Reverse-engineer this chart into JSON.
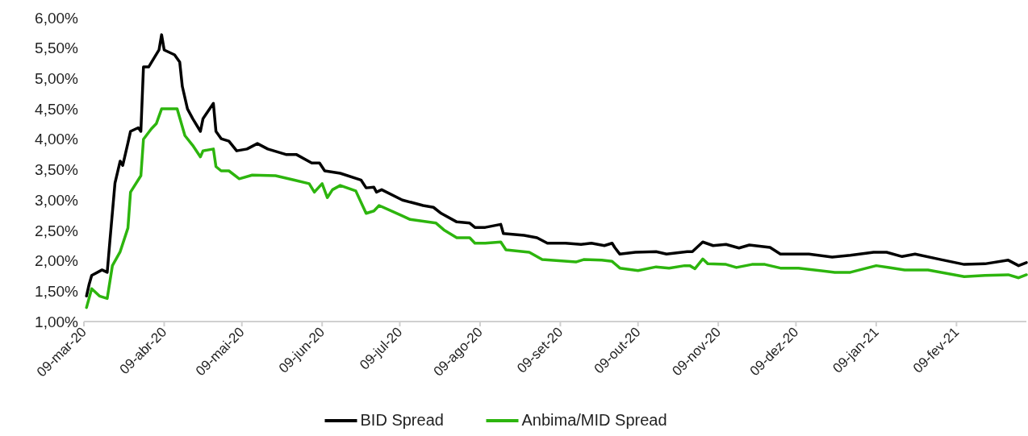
{
  "chart_data": {
    "type": "line",
    "legend": "bottom",
    "marker": "none",
    "line_style": "solid",
    "grid": false,
    "xlim": [
      "2020-03-09",
      "2021-03-08"
    ],
    "xticks": [
      {
        "value": "2020-03-09",
        "label": "09-mar-20"
      },
      {
        "value": "2020-04-09",
        "label": "09-abr-20"
      },
      {
        "value": "2020-05-09",
        "label": "09-mai-20"
      },
      {
        "value": "2020-06-09",
        "label": "09-jun-20"
      },
      {
        "value": "2020-07-09",
        "label": "09-jul-20"
      },
      {
        "value": "2020-08-09",
        "label": "09-ago-20"
      },
      {
        "value": "2020-09-09",
        "label": "09-set-20"
      },
      {
        "value": "2020-10-09",
        "label": "09-out-20"
      },
      {
        "value": "2020-11-09",
        "label": "09-nov-20"
      },
      {
        "value": "2020-12-09",
        "label": "09-dez-20"
      },
      {
        "value": "2021-01-09",
        "label": "09-jan-21"
      },
      {
        "value": "2021-02-09",
        "label": "09-fev-21"
      }
    ],
    "ylim": [
      1,
      6
    ],
    "yticks": [
      {
        "value": 1,
        "label": "1,00%"
      },
      {
        "value": 1.5,
        "label": "1,50%"
      },
      {
        "value": 2,
        "label": "2,00%"
      },
      {
        "value": 2.5,
        "label": "2,50%"
      },
      {
        "value": 3,
        "label": "3,00%"
      },
      {
        "value": 3.5,
        "label": "3,50%"
      },
      {
        "value": 4,
        "label": "4,00%"
      },
      {
        "value": 4.5,
        "label": "4,50%"
      },
      {
        "value": 5,
        "label": "5,00%"
      },
      {
        "value": 5.5,
        "label": "5,50%"
      },
      {
        "value": 6,
        "label": "6,00%"
      }
    ],
    "series": [
      {
        "name": "BID Spread",
        "color": "#000000",
        "x": [
          "2020-03-10",
          "2020-03-11",
          "2020-03-12",
          "2020-03-16",
          "2020-03-18",
          "2020-03-19",
          "2020-03-21",
          "2020-03-23",
          "2020-03-24",
          "2020-03-26",
          "2020-03-27",
          "2020-03-30",
          "2020-03-31",
          "2020-04-01",
          "2020-04-03",
          "2020-04-07",
          "2020-04-08",
          "2020-04-09",
          "2020-04-13",
          "2020-04-15",
          "2020-04-16",
          "2020-04-18",
          "2020-04-20",
          "2020-04-23",
          "2020-04-24",
          "2020-04-28",
          "2020-04-29",
          "2020-05-01",
          "2020-05-04",
          "2020-05-07",
          "2020-05-11",
          "2020-05-15",
          "2020-05-19",
          "2020-05-26",
          "2020-05-30",
          "2020-06-05",
          "2020-06-08",
          "2020-06-10",
          "2020-06-16",
          "2020-06-24",
          "2020-06-26",
          "2020-06-29",
          "2020-06-30",
          "2020-07-02",
          "2020-07-10",
          "2020-07-18",
          "2020-07-22",
          "2020-07-25",
          "2020-07-31",
          "2020-08-05",
          "2020-08-07",
          "2020-08-11",
          "2020-08-17",
          "2020-08-18",
          "2020-08-26",
          "2020-08-31",
          "2020-09-04",
          "2020-09-11",
          "2020-09-17",
          "2020-09-21",
          "2020-09-26",
          "2020-09-29",
          "2020-09-30",
          "2020-10-02",
          "2020-10-08",
          "2020-10-16",
          "2020-10-20",
          "2020-10-28",
          "2020-10-30",
          "2020-11-03",
          "2020-11-07",
          "2020-11-12",
          "2020-11-17",
          "2020-11-21",
          "2020-11-29",
          "2020-12-03",
          "2020-12-14",
          "2020-12-23",
          "2020-12-30",
          "2021-01-08",
          "2021-01-13",
          "2021-01-19",
          "2021-01-24",
          "2021-02-03",
          "2021-02-12",
          "2021-02-20",
          "2021-03-01",
          "2021-03-05",
          "2021-03-08"
        ],
        "values": [
          1.42,
          1.61,
          1.76,
          1.85,
          1.81,
          2.31,
          3.28,
          3.64,
          3.57,
          3.94,
          4.13,
          4.19,
          4.13,
          5.19,
          5.19,
          5.47,
          5.72,
          5.47,
          5.39,
          5.27,
          4.87,
          4.5,
          4.34,
          4.13,
          4.34,
          4.59,
          4.13,
          4.01,
          3.97,
          3.81,
          3.84,
          3.93,
          3.84,
          3.75,
          3.75,
          3.61,
          3.61,
          3.48,
          3.44,
          3.33,
          3.2,
          3.21,
          3.13,
          3.17,
          3.0,
          2.91,
          2.88,
          2.78,
          2.64,
          2.62,
          2.55,
          2.55,
          2.6,
          2.45,
          2.42,
          2.38,
          2.29,
          2.29,
          2.27,
          2.29,
          2.25,
          2.29,
          2.22,
          2.11,
          2.14,
          2.15,
          2.11,
          2.15,
          2.15,
          2.31,
          2.25,
          2.27,
          2.21,
          2.26,
          2.22,
          2.11,
          2.11,
          2.06,
          2.09,
          2.14,
          2.14,
          2.07,
          2.11,
          2.02,
          1.94,
          1.95,
          2.01,
          1.92,
          1.97
        ]
      },
      {
        "name": "Anbima/MID Spread",
        "color": "#2db50e",
        "x": [
          "2020-03-10",
          "2020-03-12",
          "2020-03-15",
          "2020-03-18",
          "2020-03-20",
          "2020-03-23",
          "2020-03-26",
          "2020-03-27",
          "2020-03-31",
          "2020-04-01",
          "2020-04-04",
          "2020-04-06",
          "2020-04-08",
          "2020-04-14",
          "2020-04-17",
          "2020-04-20",
          "2020-04-23",
          "2020-04-24",
          "2020-04-28",
          "2020-04-29",
          "2020-05-01",
          "2020-05-04",
          "2020-05-08",
          "2020-05-13",
          "2020-05-22",
          "2020-05-29",
          "2020-06-04",
          "2020-06-06",
          "2020-06-09",
          "2020-06-11",
          "2020-06-13",
          "2020-06-16",
          "2020-06-22",
          "2020-06-26",
          "2020-06-29",
          "2020-07-01",
          "2020-07-10",
          "2020-07-13",
          "2020-07-23",
          "2020-07-26",
          "2020-07-31",
          "2020-08-05",
          "2020-08-07",
          "2020-08-11",
          "2020-08-17",
          "2020-08-19",
          "2020-08-28",
          "2020-09-02",
          "2020-09-15",
          "2020-09-18",
          "2020-09-25",
          "2020-09-29",
          "2020-10-02",
          "2020-10-09",
          "2020-10-16",
          "2020-10-21",
          "2020-10-27",
          "2020-10-29",
          "2020-10-31",
          "2020-11-03",
          "2020-11-05",
          "2020-11-12",
          "2020-11-16",
          "2020-11-22",
          "2020-11-27",
          "2020-12-03",
          "2020-12-10",
          "2020-12-24",
          "2020-12-30",
          "2021-01-09",
          "2021-01-14",
          "2021-01-20",
          "2021-01-29",
          "2021-02-12",
          "2021-02-20",
          "2021-03-01",
          "2021-03-05",
          "2021-03-08"
        ],
        "values": [
          1.23,
          1.54,
          1.42,
          1.38,
          1.92,
          2.15,
          2.54,
          3.13,
          3.4,
          4.0,
          4.17,
          4.26,
          4.5,
          4.5,
          4.06,
          3.9,
          3.71,
          3.81,
          3.84,
          3.55,
          3.48,
          3.48,
          3.35,
          3.41,
          3.4,
          3.33,
          3.27,
          3.13,
          3.27,
          3.04,
          3.17,
          3.24,
          3.15,
          2.78,
          2.82,
          2.91,
          2.74,
          2.68,
          2.62,
          2.51,
          2.38,
          2.38,
          2.29,
          2.29,
          2.31,
          2.18,
          2.14,
          2.02,
          1.98,
          2.02,
          2.01,
          1.99,
          1.88,
          1.84,
          1.9,
          1.88,
          1.92,
          1.92,
          1.87,
          2.03,
          1.95,
          1.94,
          1.89,
          1.94,
          1.94,
          1.88,
          1.88,
          1.81,
          1.81,
          1.92,
          1.89,
          1.85,
          1.85,
          1.74,
          1.76,
          1.77,
          1.72,
          1.77
        ]
      }
    ]
  }
}
